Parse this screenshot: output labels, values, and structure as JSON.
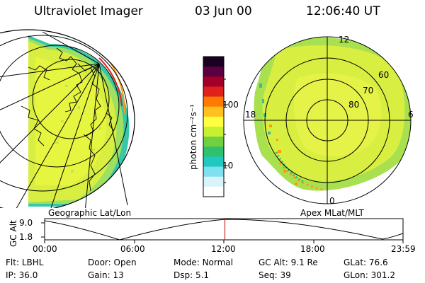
{
  "header": {
    "title": "Ultraviolet Imager",
    "date": "03 Jun 00",
    "time": "12:06:40 UT"
  },
  "colorbar": {
    "unit_label": "photon cm⁻²s⁻¹",
    "ticks": [
      "100",
      "10"
    ],
    "colors": [
      "#1a0020",
      "#5a0040",
      "#a0002a",
      "#e0201a",
      "#ff7a00",
      "#ffc020",
      "#ffff40",
      "#c8f030",
      "#70d040",
      "#30c070",
      "#20c8c0",
      "#80e0f0",
      "#d8f4f8",
      "#ffffff"
    ]
  },
  "left_panel": {
    "caption": "Geographic Lat/Lon"
  },
  "right_panel": {
    "caption": "Apex MLat/MLT",
    "lat_labels": [
      "60",
      "70",
      "80"
    ],
    "mlt_labels": {
      "top": "12",
      "left": "18",
      "right": "6",
      "bottom": "0"
    }
  },
  "timeline": {
    "ylabel": "GC Alt",
    "y_ticks": [
      "9.0",
      "1.8"
    ],
    "x_ticks": [
      "00:00",
      "06:00",
      "12:00",
      "18:00",
      "23:59"
    ],
    "current_time_fraction": 0.503
  },
  "info": {
    "row1": [
      {
        "label": "Flt:",
        "value": "LBHL"
      },
      {
        "label": "Door:",
        "value": "Open"
      },
      {
        "label": "Mode:",
        "value": "Normal"
      },
      {
        "label": "GC Alt:",
        "value": "9.1 Re"
      },
      {
        "label": "GLat:",
        "value": "76.6"
      }
    ],
    "row2": [
      {
        "label": "IP:",
        "value": "36.0"
      },
      {
        "label": "Gain:",
        "value": "13"
      },
      {
        "label": "Dsp:",
        "value": "5.1"
      },
      {
        "label": "Seq:",
        "value": "39"
      },
      {
        "label": "GLon:",
        "value": "301.2"
      }
    ]
  }
}
